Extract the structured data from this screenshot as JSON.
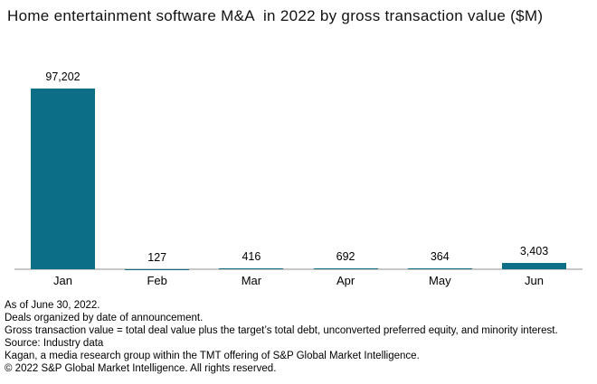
{
  "title": "Home entertainment software M&A  in 2022 by gross transaction value ($M)",
  "chart_data": {
    "type": "bar",
    "title": "Home entertainment software M&A in 2022 by gross transaction value ($M)",
    "categories": [
      "Jan",
      "Feb",
      "Mar",
      "Apr",
      "May",
      "Jun"
    ],
    "values": [
      97202,
      127,
      416,
      692,
      364,
      3403
    ],
    "value_labels": [
      "97,202",
      "127",
      "416",
      "692",
      "364",
      "3,403"
    ],
    "xlabel": "",
    "ylabel": "",
    "ylim": [
      0,
      97202
    ],
    "grid": false,
    "legend": "none",
    "bar_color": "#0d6e87",
    "axis_color": "#c8c8c8",
    "label_color": "#000000"
  },
  "footnotes": [
    "As of June 30, 2022.",
    "Deals organized by date of announcement.",
    "Gross transaction value = total deal value plus the target’s total debt, unconverted preferred equity, and minority interest.",
    "Source: Industry data",
    "Kagan, a media research group within the TMT offering of S&P Global Market Intelligence.",
    "© 2022 S&P Global Market Intelligence. All rights reserved."
  ]
}
